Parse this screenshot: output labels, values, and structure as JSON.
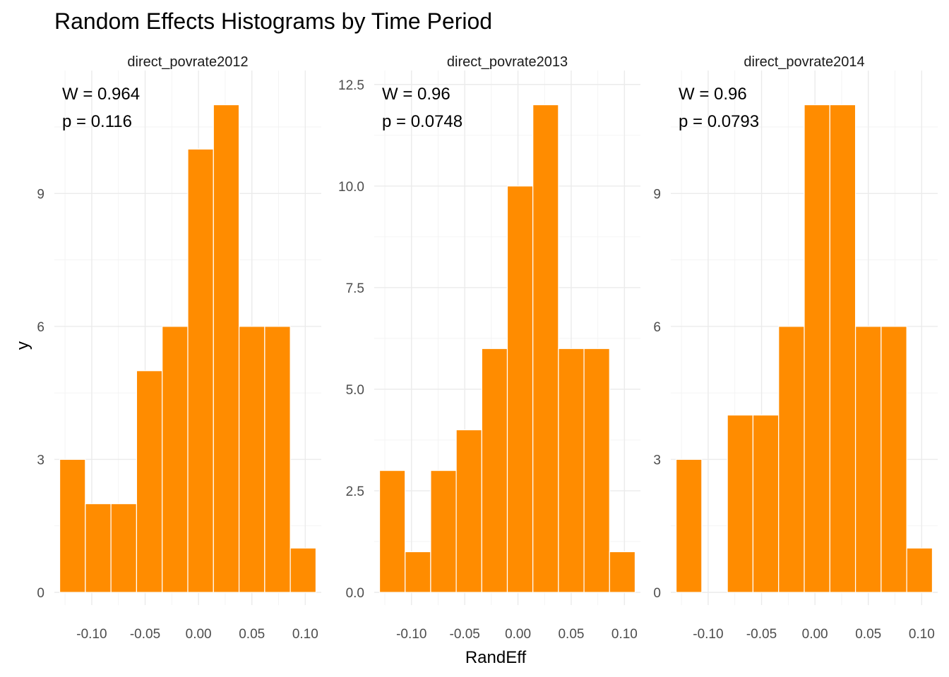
{
  "chart_data": {
    "type": "bar",
    "title": "Random Effects Histograms by Time Period",
    "xlabel": "RandEff",
    "ylabel": "y",
    "bar_color": "#FF8C00",
    "grid": true,
    "bin_edges": [
      -0.13,
      -0.106,
      -0.082,
      -0.058,
      -0.034,
      -0.01,
      0.014,
      0.038,
      0.062,
      0.086,
      0.11
    ],
    "xlim": [
      -0.135,
      0.115
    ],
    "x_ticks": [
      -0.1,
      -0.05,
      0.0,
      0.05,
      0.1
    ],
    "x_tick_labels": [
      "-0.10",
      "-0.05",
      "0.00",
      "0.05",
      "0.10"
    ],
    "panels": [
      {
        "strip": "direct_povrate2012",
        "counts": [
          3,
          2,
          2,
          5,
          6,
          10,
          11,
          6,
          6,
          1
        ],
        "ylim": [
          0,
          11.55
        ],
        "y_ticks": [
          0,
          3,
          6,
          9
        ],
        "y_tick_labels": [
          "0",
          "3",
          "6",
          "9"
        ],
        "annotation": {
          "w": "W = 0.964",
          "p": "p = 0.116"
        }
      },
      {
        "strip": "direct_povrate2013",
        "counts": [
          3,
          1,
          3,
          4,
          6,
          10,
          12,
          6,
          6,
          1
        ],
        "ylim": [
          0,
          12.6
        ],
        "y_ticks": [
          0,
          2.5,
          5,
          7.5,
          10,
          12.5
        ],
        "y_tick_labels": [
          "0.0",
          "2.5",
          "5.0",
          "7.5",
          "10.0",
          "12.5"
        ],
        "annotation": {
          "w": "W = 0.96",
          "p": "p = 0.0748"
        }
      },
      {
        "strip": "direct_povrate2014",
        "counts": [
          3,
          0,
          4,
          4,
          6,
          11,
          11,
          6,
          6,
          1
        ],
        "ylim": [
          0,
          11.55
        ],
        "y_ticks": [
          0,
          3,
          6,
          9
        ],
        "y_tick_labels": [
          "0",
          "3",
          "6",
          "9"
        ],
        "annotation": {
          "w": "W = 0.96",
          "p": "p = 0.0793"
        }
      }
    ]
  }
}
